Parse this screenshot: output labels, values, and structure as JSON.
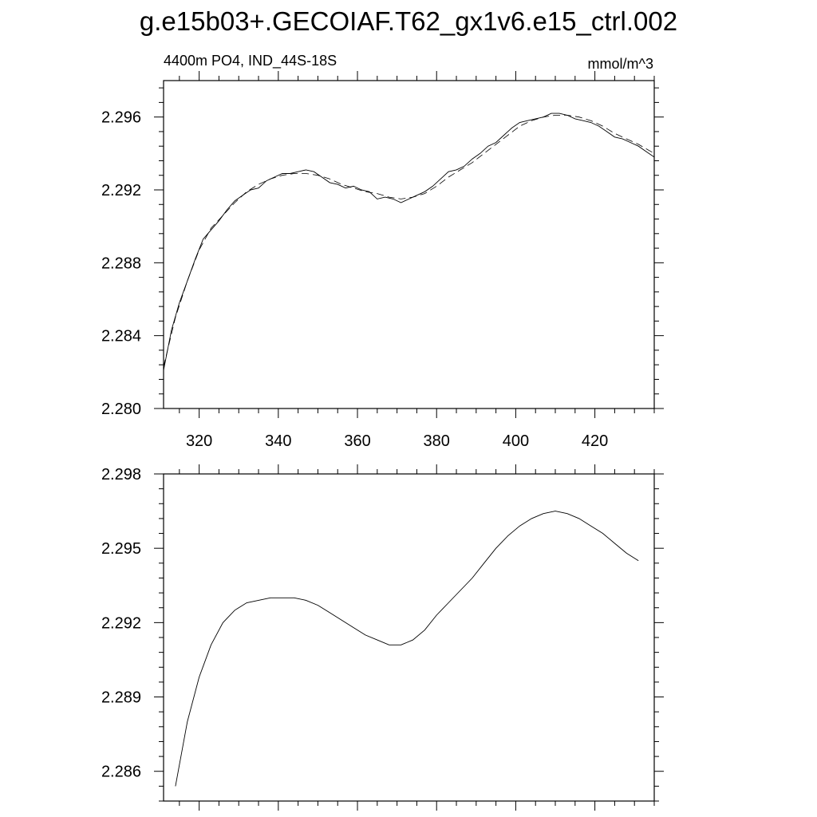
{
  "figure_title": "g.e15b03+.GECOIAF.T62_gx1v6.e15_ctrl.002",
  "chart_data": [
    {
      "type": "line",
      "left_label": "4400m PO4, IND_44S-18S",
      "right_label": "mmol/m^3",
      "xlim": [
        311,
        435
      ],
      "ylim": [
        2.28,
        2.298
      ],
      "x_ticks": [
        320,
        340,
        360,
        380,
        400,
        420
      ],
      "y_ticks": [
        2.28,
        2.284,
        2.288,
        2.292,
        2.296
      ],
      "y_tick_labels": [
        "2.280",
        "2.284",
        "2.288",
        "2.292",
        "2.296"
      ],
      "x_tick_labels": [
        "320",
        "340",
        "360",
        "380",
        "400",
        "420"
      ],
      "series": [
        {
          "style": "solid",
          "x": [
            311,
            313,
            315,
            317,
            319,
            321,
            323,
            325,
            327,
            329,
            331,
            333,
            335,
            337,
            339,
            341,
            343,
            345,
            347,
            349,
            351,
            353,
            355,
            357,
            359,
            361,
            363,
            365,
            367,
            369,
            371,
            373,
            375,
            377,
            379,
            381,
            383,
            385,
            387,
            389,
            391,
            393,
            395,
            397,
            399,
            401,
            403,
            405,
            407,
            409,
            411,
            413,
            415,
            417,
            419,
            421,
            423,
            425,
            427,
            429,
            431,
            433,
            435
          ],
          "y": [
            2.2821,
            2.2843,
            2.2858,
            2.287,
            2.2882,
            2.2893,
            2.2898,
            2.2903,
            2.2909,
            2.2914,
            2.2917,
            2.292,
            2.2921,
            2.2925,
            2.2927,
            2.2929,
            2.2929,
            2.293,
            2.2931,
            2.293,
            2.2927,
            2.2924,
            2.2923,
            2.2921,
            2.2922,
            2.292,
            2.2919,
            2.2915,
            2.2916,
            2.2915,
            2.2913,
            2.2915,
            2.2917,
            2.2919,
            2.2922,
            2.2926,
            2.293,
            2.2931,
            2.2933,
            2.2937,
            2.294,
            2.2944,
            2.2946,
            2.295,
            2.2954,
            2.2957,
            2.2958,
            2.2959,
            2.296,
            2.2962,
            2.2962,
            2.2961,
            2.2959,
            2.2958,
            2.2957,
            2.2955,
            2.2952,
            2.2949,
            2.2948,
            2.2946,
            2.2944,
            2.2941,
            2.2938
          ]
        },
        {
          "style": "dashed",
          "x": [
            311,
            314,
            317,
            320,
            323,
            326,
            329,
            332,
            335,
            338,
            341,
            344,
            347,
            350,
            353,
            356,
            359,
            362,
            365,
            368,
            371,
            374,
            377,
            380,
            383,
            386,
            389,
            392,
            395,
            398,
            401,
            404,
            407,
            410,
            413,
            416,
            419,
            422,
            425,
            428,
            431,
            435
          ],
          "y": [
            2.2823,
            2.285,
            2.287,
            2.2887,
            2.2899,
            2.2906,
            2.2913,
            2.2919,
            2.2923,
            2.2926,
            2.2928,
            2.2929,
            2.2929,
            2.2928,
            2.2926,
            2.2923,
            2.2921,
            2.2919,
            2.2918,
            2.2916,
            2.2915,
            2.2916,
            2.2918,
            2.2922,
            2.2927,
            2.2931,
            2.2935,
            2.294,
            2.2945,
            2.295,
            2.2955,
            2.2958,
            2.296,
            2.2961,
            2.2961,
            2.296,
            2.2958,
            2.2955,
            2.2951,
            2.2948,
            2.2945,
            2.294
          ]
        }
      ]
    },
    {
      "type": "line",
      "xlim": [
        311,
        435
      ],
      "ylim": [
        2.2848,
        2.298
      ],
      "x_ticks": [
        320,
        340,
        360,
        380,
        400,
        420
      ],
      "y_ticks": [
        2.286,
        2.289,
        2.292,
        2.295,
        2.298
      ],
      "y_tick_labels": [
        "2.286",
        "2.289",
        "2.292",
        "2.295",
        "2.298"
      ],
      "series": [
        {
          "style": "solid",
          "x": [
            314,
            317,
            320,
            323,
            326,
            329,
            332,
            335,
            338,
            341,
            344,
            347,
            350,
            353,
            356,
            359,
            362,
            365,
            368,
            371,
            374,
            377,
            380,
            383,
            386,
            389,
            392,
            395,
            398,
            401,
            404,
            407,
            410,
            413,
            416,
            419,
            422,
            425,
            428,
            431
          ],
          "y": [
            2.2854,
            2.288,
            2.2898,
            2.2911,
            2.292,
            2.2925,
            2.2928,
            2.2929,
            2.293,
            2.293,
            2.293,
            2.2929,
            2.2927,
            2.2924,
            2.2921,
            2.2918,
            2.2915,
            2.2913,
            2.2911,
            2.2911,
            2.2913,
            2.2917,
            2.2923,
            2.2928,
            2.2933,
            2.2938,
            2.2944,
            2.295,
            2.2955,
            2.2959,
            2.2962,
            2.2964,
            2.2965,
            2.2964,
            2.2962,
            2.2959,
            2.2956,
            2.2952,
            2.2948,
            2.2945
          ]
        }
      ]
    }
  ]
}
